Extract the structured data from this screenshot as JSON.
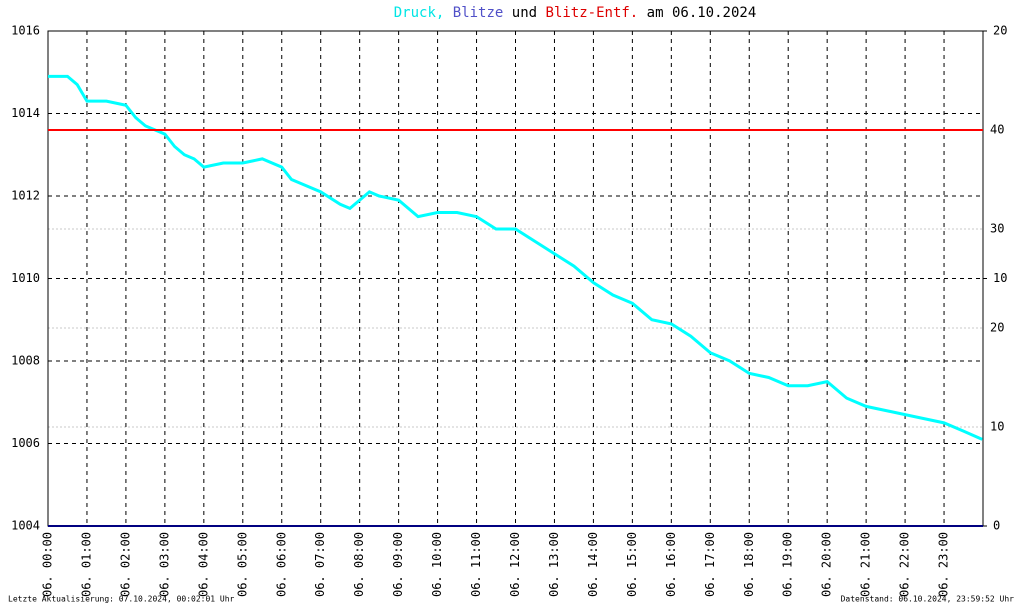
{
  "chart_data": {
    "type": "line",
    "title_parts": [
      {
        "text": "Druck,",
        "color": "#00e5e5"
      },
      {
        "text": "Blitze",
        "color": "#5050c8"
      },
      {
        "text": "und",
        "color": "#000000"
      },
      {
        "text": "Blitz-Entf.",
        "color": "#dd0000"
      },
      {
        "text": "am 06.10.2024",
        "color": "#000000"
      }
    ],
    "footer_left": "Letzte Aktualisierung: 07.10.2024, 00:02:01 Uhr",
    "footer_right": "Datenstand: 06.10.2024, 23:59:52 Uhr",
    "xlim": [
      0,
      24
    ],
    "xticks": [
      {
        "value": 0,
        "label": "06. 00:00"
      },
      {
        "value": 1,
        "label": "06. 01:00"
      },
      {
        "value": 2,
        "label": "06. 02:00"
      },
      {
        "value": 3,
        "label": "06. 03:00"
      },
      {
        "value": 4,
        "label": "06. 04:00"
      },
      {
        "value": 5,
        "label": "06. 05:00"
      },
      {
        "value": 6,
        "label": "06. 06:00"
      },
      {
        "value": 7,
        "label": "06. 07:00"
      },
      {
        "value": 8,
        "label": "06. 08:00"
      },
      {
        "value": 9,
        "label": "06. 09:00"
      },
      {
        "value": 10,
        "label": "06. 10:00"
      },
      {
        "value": 11,
        "label": "06. 11:00"
      },
      {
        "value": 12,
        "label": "06. 12:00"
      },
      {
        "value": 13,
        "label": "06. 13:00"
      },
      {
        "value": 14,
        "label": "06. 14:00"
      },
      {
        "value": 15,
        "label": "06. 15:00"
      },
      {
        "value": 16,
        "label": "06. 16:00"
      },
      {
        "value": 17,
        "label": "06. 17:00"
      },
      {
        "value": 18,
        "label": "06. 18:00"
      },
      {
        "value": 19,
        "label": "06. 19:00"
      },
      {
        "value": 20,
        "label": "06. 20:00"
      },
      {
        "value": 21,
        "label": "06. 21:00"
      },
      {
        "value": 22,
        "label": "06. 22:00"
      },
      {
        "value": 23,
        "label": "06. 23:00"
      }
    ],
    "ylim": [
      1004,
      1016
    ],
    "yticks": [
      1004,
      1006,
      1008,
      1010,
      1012,
      1014,
      1016
    ],
    "y2lim": [
      0,
      20
    ],
    "y2ticks": [
      0,
      10,
      20
    ],
    "y3lim": [
      0,
      50
    ],
    "y3ticks": [
      10,
      20,
      30,
      40
    ],
    "y3color": "#dd0000",
    "grid": true,
    "series": [
      {
        "name": "Druck",
        "color": "#00ffff",
        "axis": "y",
        "x": [
          0,
          0.5,
          0.75,
          1,
          1.5,
          2,
          2.25,
          2.5,
          3,
          3.25,
          3.5,
          3.75,
          4,
          4.5,
          5,
          5.5,
          6,
          6.25,
          6.5,
          7,
          7.5,
          7.75,
          8,
          8.25,
          8.5,
          9,
          9.5,
          10,
          10.5,
          11,
          11.5,
          12,
          12.5,
          13,
          13.5,
          14,
          14.5,
          15,
          15.5,
          16,
          16.5,
          17,
          17.5,
          18,
          18.5,
          19,
          19.5,
          20,
          20.5,
          21,
          21.5,
          22,
          22.5,
          23,
          23.5,
          23.98
        ],
        "values": [
          1014.9,
          1014.9,
          1014.7,
          1014.3,
          1014.3,
          1014.2,
          1013.9,
          1013.7,
          1013.5,
          1013.2,
          1013.0,
          1012.9,
          1012.7,
          1012.8,
          1012.8,
          1012.9,
          1012.7,
          1012.4,
          1012.3,
          1012.1,
          1011.8,
          1011.7,
          1011.9,
          1012.1,
          1012.0,
          1011.9,
          1011.5,
          1011.6,
          1011.6,
          1011.5,
          1011.2,
          1011.2,
          1010.9,
          1010.6,
          1010.3,
          1009.9,
          1009.6,
          1009.4,
          1009.0,
          1008.9,
          1008.6,
          1008.2,
          1008.0,
          1007.7,
          1007.6,
          1007.4,
          1007.4,
          1007.5,
          1007.1,
          1006.9,
          1006.8,
          1006.7,
          1006.6,
          1006.5,
          1006.3,
          1006.1
        ]
      },
      {
        "name": "Blitze",
        "color": "#000080",
        "axis": "y2",
        "x": [
          0,
          24
        ],
        "values": [
          0,
          0
        ]
      },
      {
        "name": "Blitz-Entf.",
        "color": "#ff0000",
        "axis": "y3",
        "x": [
          0,
          24
        ],
        "values": [
          40,
          40
        ]
      }
    ]
  }
}
